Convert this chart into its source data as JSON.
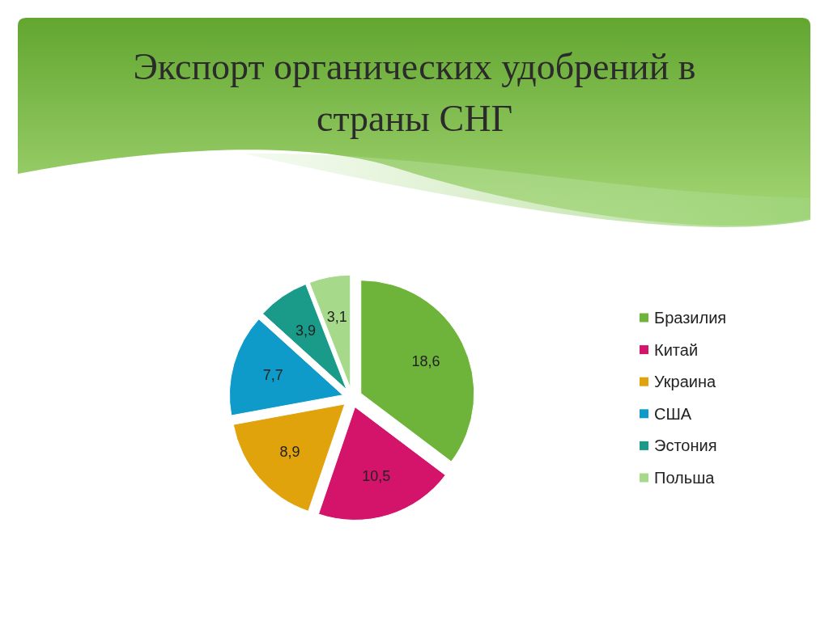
{
  "chart_data": {
    "type": "pie",
    "title": "Экспорт органических удобрений в страны СНГ",
    "categories": [
      "Бразилия",
      "Китай",
      "Украина",
      "США",
      "Эстония",
      "Польша"
    ],
    "values": [
      18.6,
      10.5,
      8.9,
      7.7,
      3.9,
      3.1
    ],
    "value_labels": [
      "18,6",
      "10,5",
      "8,9",
      "7,7",
      "3,9",
      "3,1"
    ],
    "colors": [
      "#6fb43a",
      "#d4136a",
      "#e0a30c",
      "#0f9bc9",
      "#1a9b8a",
      "#a6d98a"
    ],
    "legend": "right"
  }
}
